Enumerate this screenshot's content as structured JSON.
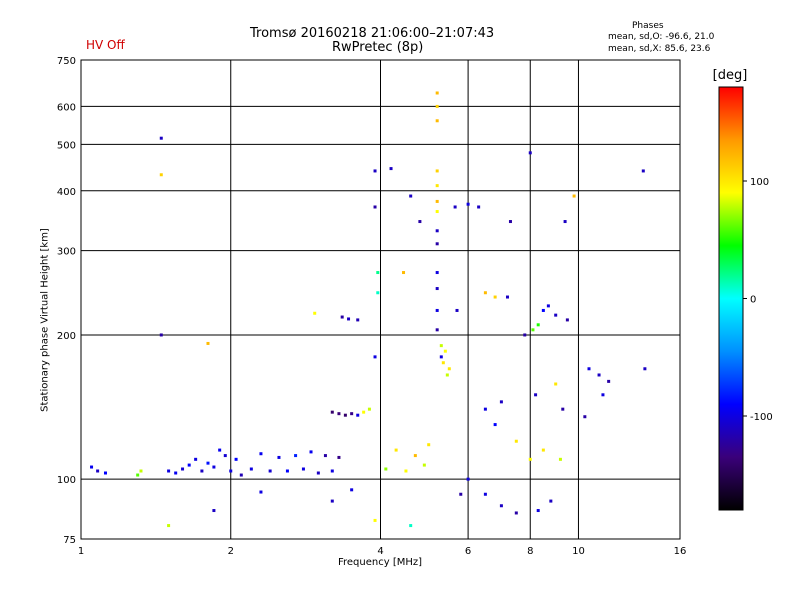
{
  "header": {
    "title_line1": "Tromsø 20160218 21:06:00–21:07:43",
    "title_line2": "RwPretec (8p)",
    "status": "HV Off",
    "stats_heading": "Phases",
    "stats_o": "mean, sd,O: -96.6, 21.0",
    "stats_x": "mean, sd,X:  85.6, 23.6"
  },
  "colorbar": {
    "unit": "[deg]",
    "ticks": [
      {
        "value": 100,
        "label": "100"
      },
      {
        "value": 0,
        "label": "0"
      },
      {
        "value": -100,
        "label": "-100"
      }
    ],
    "range": [
      -180,
      180
    ],
    "stops": [
      "#000000",
      "#3a007a",
      "#0000ff",
      "#0090ff",
      "#00ffff",
      "#00ff00",
      "#ffff00",
      "#ff9900",
      "#ff0000"
    ]
  },
  "chart_data": {
    "type": "scatter",
    "title": "Tromsø 20160218 21:06:00–21:07:43",
    "subtitle": "RwPretec (8p)",
    "xlabel": "Frequency [MHz]",
    "ylabel": "Stationary phase Virtual Height [km]",
    "xscale": "log",
    "yscale": "log",
    "xlim": [
      1,
      16
    ],
    "ylim": [
      75,
      750
    ],
    "grid": true,
    "xticks": [
      1,
      2,
      4,
      6,
      8,
      10,
      16
    ],
    "yticks": [
      75,
      100,
      200,
      300,
      400,
      500,
      600,
      750
    ],
    "series": [
      {
        "points": [
          [
            1.05,
            106,
            -95
          ],
          [
            1.08,
            104,
            -110
          ],
          [
            1.12,
            103,
            -90
          ],
          [
            1.3,
            102,
            60
          ],
          [
            1.32,
            104,
            80
          ],
          [
            1.45,
            515,
            -110
          ],
          [
            1.45,
            432,
            110
          ],
          [
            1.45,
            200,
            -120
          ],
          [
            1.5,
            104,
            -100
          ],
          [
            1.55,
            103,
            -95
          ],
          [
            1.6,
            105,
            -105
          ],
          [
            1.65,
            107,
            -90
          ],
          [
            1.7,
            110,
            -100
          ],
          [
            1.75,
            104,
            -110
          ],
          [
            1.8,
            108,
            -85
          ],
          [
            1.85,
            106,
            -100
          ],
          [
            1.9,
            115,
            -95
          ],
          [
            1.95,
            112,
            -105
          ],
          [
            2.0,
            104,
            -100
          ],
          [
            2.05,
            110,
            -90
          ],
          [
            2.1,
            102,
            -115
          ],
          [
            2.2,
            105,
            -100
          ],
          [
            2.3,
            113,
            -95
          ],
          [
            2.4,
            104,
            -105
          ],
          [
            2.5,
            111,
            -100
          ],
          [
            2.6,
            104,
            -90
          ],
          [
            2.7,
            112,
            -80
          ],
          [
            2.8,
            105,
            -100
          ],
          [
            2.9,
            114,
            -95
          ],
          [
            3.0,
            103,
            -110
          ],
          [
            3.1,
            112,
            -120
          ],
          [
            3.2,
            104,
            -100
          ],
          [
            3.3,
            111,
            -130
          ],
          [
            3.2,
            138,
            -140
          ],
          [
            3.3,
            137,
            -135
          ],
          [
            3.4,
            136,
            -140
          ],
          [
            3.5,
            137,
            -130
          ],
          [
            3.6,
            136,
            -100
          ],
          [
            3.7,
            138,
            90
          ],
          [
            3.8,
            140,
            80
          ],
          [
            3.35,
            218,
            -120
          ],
          [
            3.45,
            216,
            -110
          ],
          [
            3.6,
            215,
            -115
          ],
          [
            3.9,
            440,
            -110
          ],
          [
            3.9,
            370,
            -120
          ],
          [
            3.95,
            270,
            20
          ],
          [
            3.95,
            245,
            10
          ],
          [
            3.9,
            180,
            -100
          ],
          [
            4.2,
            445,
            -110
          ],
          [
            4.45,
            270,
            120
          ],
          [
            4.1,
            105,
            70
          ],
          [
            4.3,
            115,
            100
          ],
          [
            4.5,
            104,
            90
          ],
          [
            4.7,
            112,
            120
          ],
          [
            4.9,
            107,
            80
          ],
          [
            5.0,
            118,
            100
          ],
          [
            5.2,
            640,
            120
          ],
          [
            5.2,
            600,
            110
          ],
          [
            5.2,
            560,
            120
          ],
          [
            5.2,
            440,
            110
          ],
          [
            5.2,
            410,
            100
          ],
          [
            5.2,
            380,
            120
          ],
          [
            5.2,
            362,
            90
          ],
          [
            5.2,
            330,
            -110
          ],
          [
            5.2,
            310,
            -120
          ],
          [
            5.2,
            270,
            -100
          ],
          [
            5.2,
            250,
            -110
          ],
          [
            5.2,
            225,
            -100
          ],
          [
            5.2,
            205,
            -120
          ],
          [
            5.3,
            190,
            80
          ],
          [
            5.4,
            185,
            90
          ],
          [
            5.35,
            175,
            100
          ],
          [
            5.5,
            170,
            100
          ],
          [
            5.45,
            165,
            80
          ],
          [
            4.6,
            390,
            -110
          ],
          [
            4.8,
            345,
            -120
          ],
          [
            5.65,
            370,
            -110
          ],
          [
            6.0,
            375,
            -100
          ],
          [
            6.3,
            370,
            -110
          ],
          [
            6.5,
            245,
            120
          ],
          [
            6.8,
            240,
            110
          ],
          [
            7.3,
            345,
            -120
          ],
          [
            7.2,
            240,
            -110
          ],
          [
            8.0,
            480,
            -110
          ],
          [
            8.1,
            205,
            60
          ],
          [
            8.3,
            210,
            50
          ],
          [
            8.5,
            225,
            -90
          ],
          [
            8.7,
            230,
            -100
          ],
          [
            9.0,
            220,
            -110
          ],
          [
            9.5,
            215,
            -120
          ],
          [
            9.8,
            390,
            120
          ],
          [
            9.4,
            345,
            -110
          ],
          [
            10.5,
            170,
            -100
          ],
          [
            11.0,
            165,
            -110
          ],
          [
            11.5,
            160,
            -120
          ],
          [
            11.2,
            150,
            -100
          ],
          [
            13.5,
            440,
            -110
          ],
          [
            13.6,
            170,
            -110
          ],
          [
            6.5,
            140,
            -100
          ],
          [
            6.8,
            130,
            -90
          ],
          [
            7.0,
            145,
            -110
          ],
          [
            7.5,
            120,
            100
          ],
          [
            8.0,
            110,
            90
          ],
          [
            8.5,
            115,
            100
          ],
          [
            9.2,
            110,
            80
          ],
          [
            9.3,
            140,
            -120
          ],
          [
            6.5,
            93,
            -100
          ],
          [
            7.0,
            88,
            -110
          ],
          [
            7.5,
            85,
            -120
          ],
          [
            8.3,
            86,
            -100
          ],
          [
            8.8,
            90,
            -110
          ],
          [
            1.85,
            86,
            -110
          ],
          [
            2.3,
            94,
            -100
          ],
          [
            3.2,
            90,
            -110
          ],
          [
            3.5,
            95,
            -100
          ],
          [
            3.9,
            82,
            90
          ],
          [
            4.6,
            80,
            10
          ],
          [
            5.8,
            93,
            -120
          ],
          [
            6.0,
            100,
            -100
          ],
          [
            1.5,
            80,
            80
          ],
          [
            2.95,
            222,
            90
          ],
          [
            1.8,
            192,
            120
          ],
          [
            5.7,
            225,
            -110
          ],
          [
            5.3,
            180,
            -100
          ],
          [
            7.8,
            200,
            -120
          ],
          [
            8.2,
            150,
            -110
          ],
          [
            9.0,
            158,
            100
          ],
          [
            10.3,
            135,
            -120
          ]
        ]
      }
    ]
  }
}
